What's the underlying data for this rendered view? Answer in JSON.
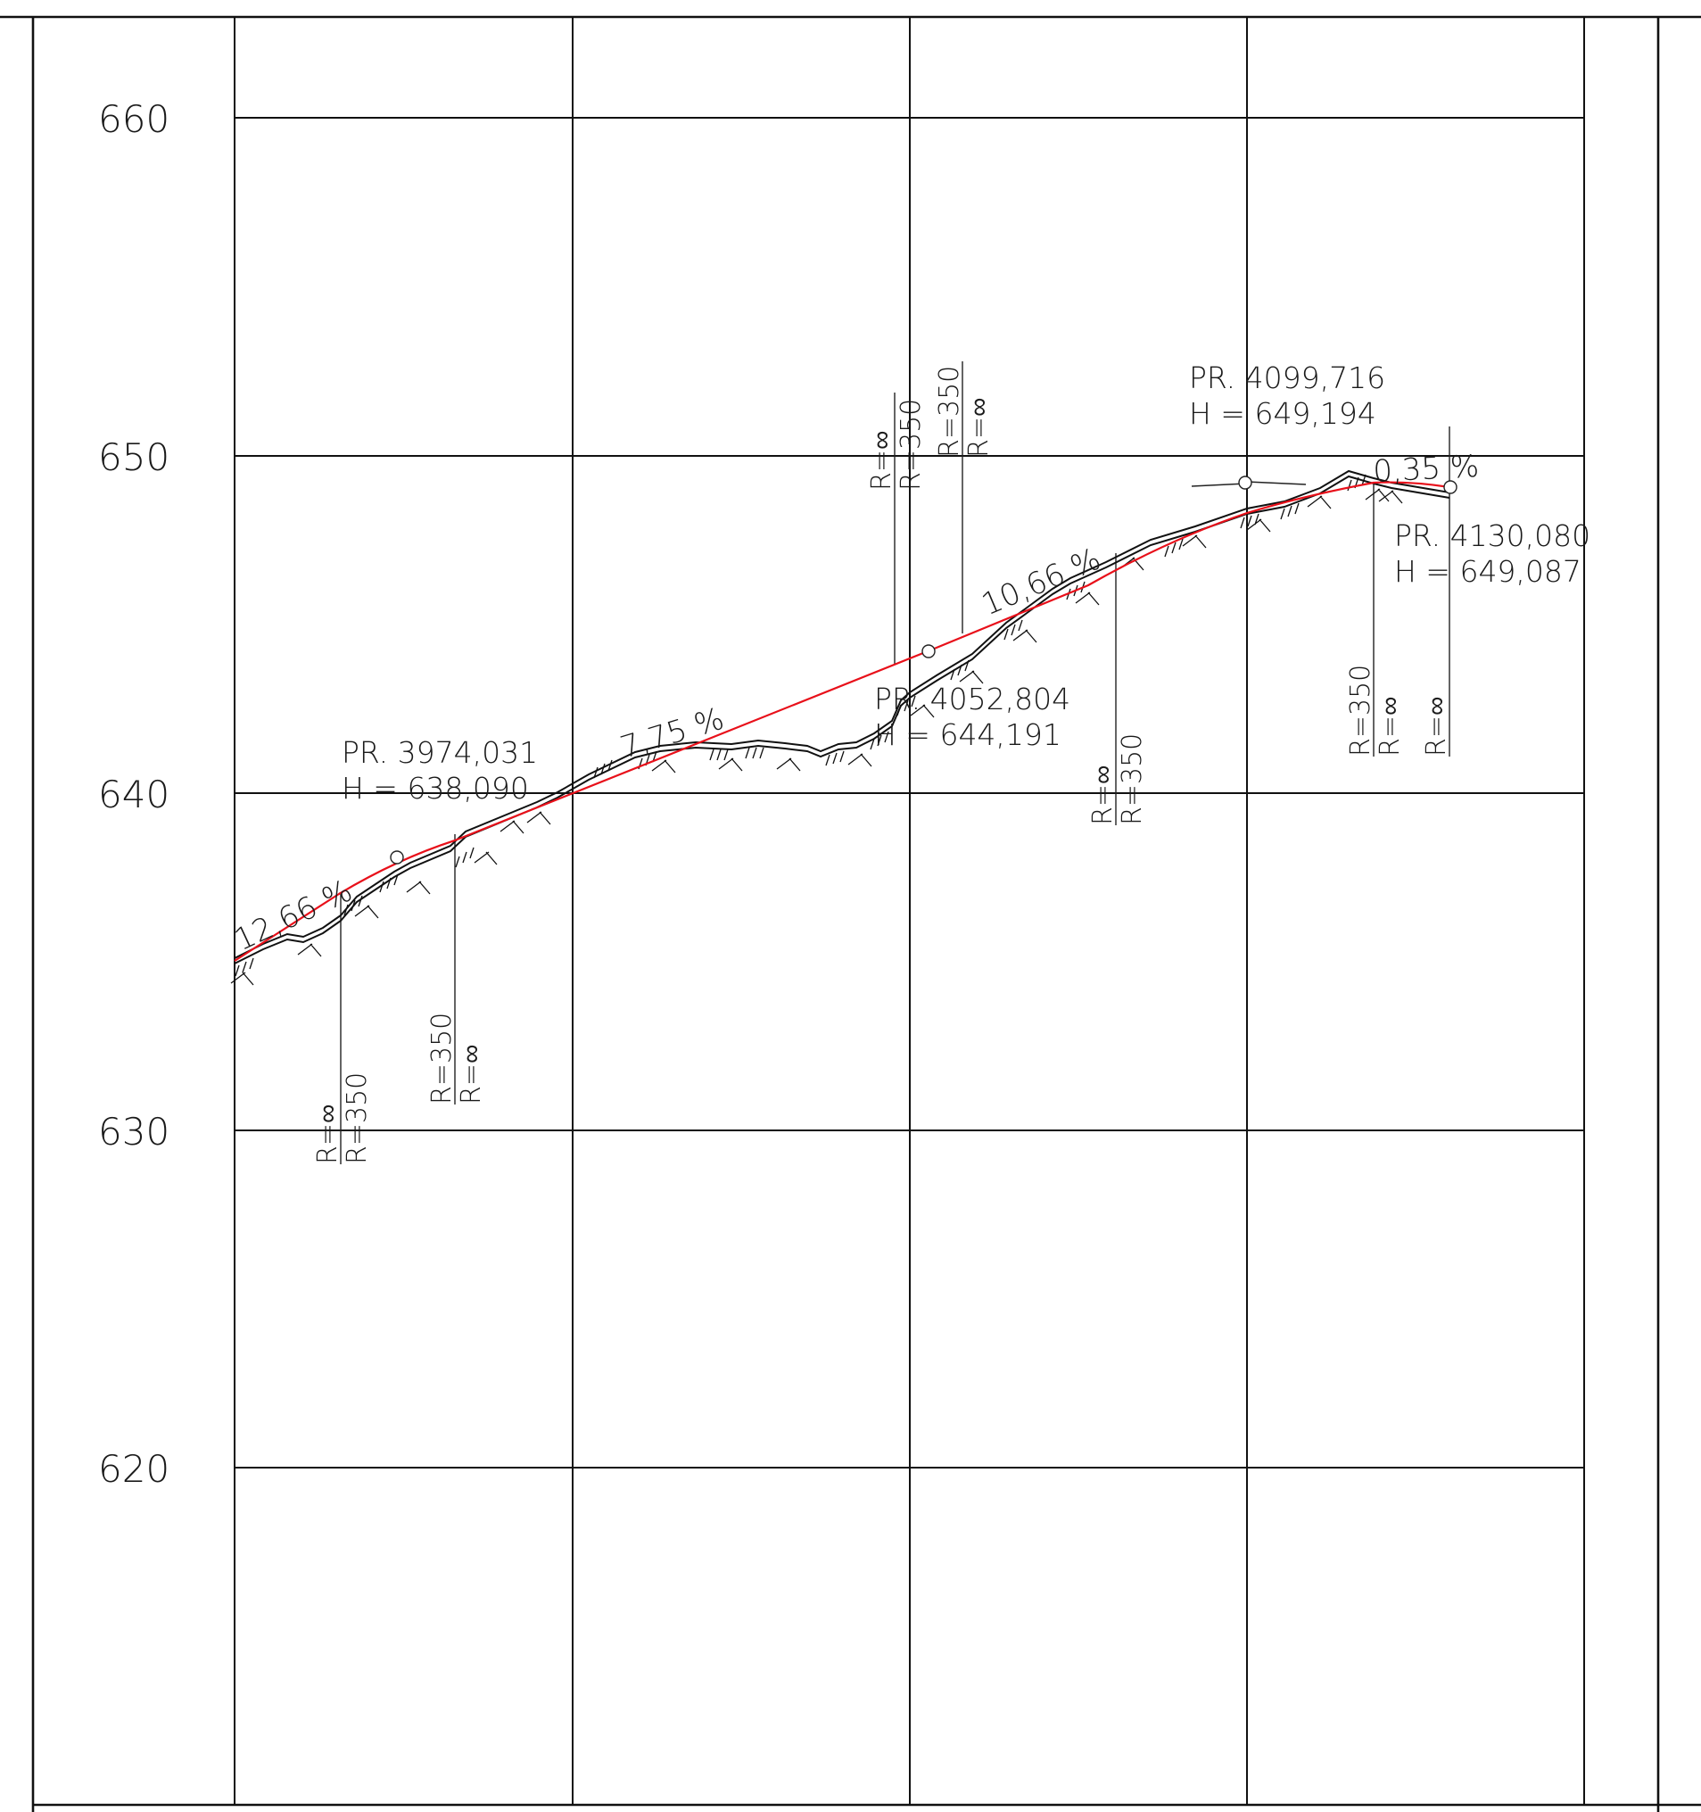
{
  "elevation_labels": [
    "660",
    "650",
    "640",
    "630",
    "620"
  ],
  "grade_labels": {
    "g1": "12,66 %",
    "g2": "7,75 %",
    "g3": "10,66 %",
    "g4": "0,35 %"
  },
  "pvi": [
    {
      "station": "PR. 3974,031",
      "height": "H = 638,090"
    },
    {
      "station": "PR. 4052,804",
      "height": "H = 644,191"
    },
    {
      "station": "PR. 4099,716",
      "height": "H = 649,194"
    },
    {
      "station": "PR. 4130,080",
      "height": "H = 649,087"
    }
  ],
  "curve_labels": {
    "r_inf": "R=∞",
    "r_350": "R=350"
  },
  "colors": {
    "grade_line": "#e8101a",
    "terrain_line": "#111111",
    "grid": "#111111"
  }
}
